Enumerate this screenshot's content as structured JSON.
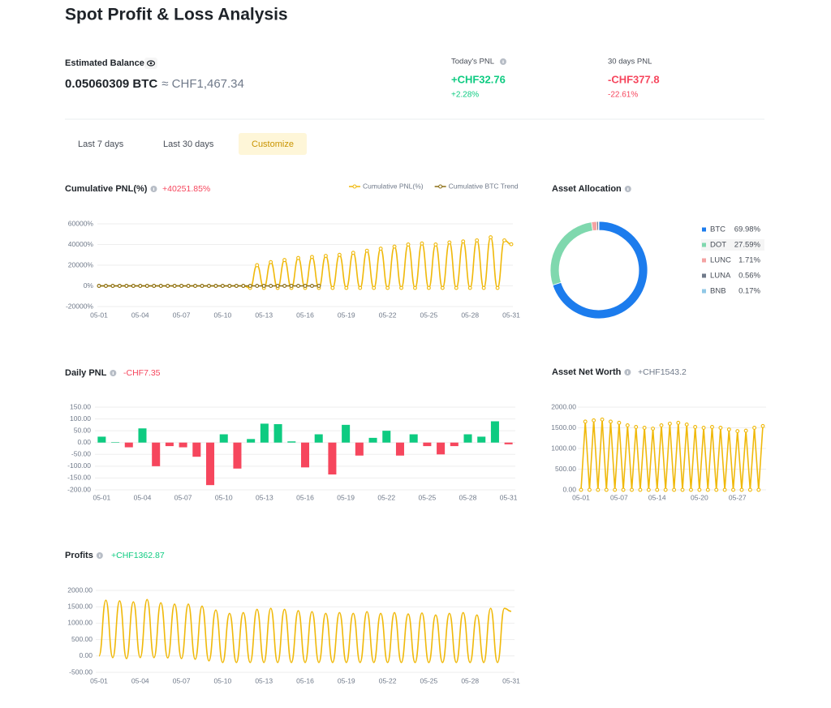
{
  "header": {
    "title": "Spot Profit & Loss Analysis"
  },
  "balance": {
    "label": "Estimated Balance",
    "btc": "0.05060309 BTC",
    "fiat": "≈ CHF1,467.34"
  },
  "today_pnl": {
    "label": "Today's PNL",
    "value": "+CHF32.76",
    "percent": "+2.28%"
  },
  "pnl_30d": {
    "label": "30 days PNL",
    "value": "-CHF377.8",
    "percent": "-22.61%"
  },
  "tabs": {
    "items": [
      "Last 7 days",
      "Last 30 days",
      "Customize"
    ],
    "active": 2
  },
  "chart_data": [
    {
      "type": "line",
      "title": "Cumulative PNL(%)",
      "summary": "+40251.85%",
      "summary_color": "#f6465d",
      "curve": "smooth",
      "grid": true,
      "legend": "top-right",
      "categories": [
        "05-01",
        null,
        null,
        null,
        null,
        null,
        "05-04",
        null,
        null,
        null,
        null,
        null,
        "05-07",
        null,
        null,
        null,
        null,
        null,
        "05-10",
        null,
        null,
        null,
        null,
        null,
        "05-13",
        null,
        null,
        null,
        null,
        null,
        "05-16",
        null,
        null,
        null,
        null,
        null,
        "05-19",
        null,
        null,
        null,
        null,
        null,
        "05-22",
        null,
        null,
        null,
        null,
        null,
        "05-25",
        null,
        null,
        null,
        null,
        null,
        "05-28",
        null,
        null,
        null,
        null,
        null,
        "05-31"
      ],
      "series": [
        {
          "name": "Cumulative PNL(%)",
          "color": "#f0b90b",
          "markers": true,
          "values": [
            0,
            0,
            0,
            0,
            0,
            0,
            0,
            0,
            0,
            0,
            0,
            0,
            0,
            0,
            0,
            0,
            0,
            0,
            0,
            0,
            0,
            0,
            -2000,
            20000,
            -2000,
            23000,
            -2000,
            25000,
            -2000,
            27000,
            -2000,
            28000,
            -2000,
            29000,
            -2000,
            30000,
            -2000,
            32000,
            -2000,
            34000,
            -2000,
            36000,
            -2000,
            38000,
            -2000,
            40000,
            -2000,
            41000,
            -2000,
            40000,
            -2000,
            42000,
            -2000,
            43000,
            -2000,
            44000,
            -2000,
            47000,
            -2000,
            44000,
            40251.85
          ]
        },
        {
          "name": "Cumulative BTC Trend",
          "color": "#8a6d12",
          "markers": true,
          "values": [
            0,
            0,
            0,
            0,
            0,
            0,
            0,
            0,
            0,
            0,
            0,
            0,
            0,
            0,
            0,
            0,
            0,
            0,
            0,
            0,
            0,
            0,
            0,
            0,
            0,
            0,
            0,
            0,
            0,
            0,
            0,
            0,
            0,
            null,
            null,
            null,
            null,
            null,
            null,
            null,
            null,
            null,
            null,
            null,
            null,
            null,
            null,
            null,
            null,
            null,
            null,
            null,
            null,
            null,
            null,
            null,
            null,
            null,
            null,
            null,
            null
          ]
        }
      ],
      "ylim": [
        -20000,
        60000
      ],
      "yticks": [
        {
          "value": -20000,
          "label": "-20000%"
        },
        {
          "value": 0,
          "label": "0%"
        },
        {
          "value": 20000,
          "label": "20000%"
        },
        {
          "value": 40000,
          "label": "40000%"
        },
        {
          "value": 60000,
          "label": "60000%"
        }
      ]
    },
    {
      "type": "pie",
      "title": "Asset Allocation",
      "donut": true,
      "categories": [
        "BTC",
        "DOT",
        "LUNC",
        "LUNA",
        "BNB"
      ],
      "values": [
        69.98,
        27.59,
        1.71,
        0.56,
        0.17
      ],
      "value_labels": [
        "69.98%",
        "27.59%",
        "1.71%",
        "0.56%",
        "0.17%"
      ],
      "colors": [
        "#1c7ced",
        "#7fd8ae",
        "#f4a3a3",
        "#707a8a",
        "#90c8e6"
      ]
    },
    {
      "type": "bar",
      "title": "Daily PNL",
      "summary": "-CHF7.35",
      "summary_color": "#f6465d",
      "grid": true,
      "positive_color": "#0ecb81",
      "negative_color": "#f6465d",
      "categories": [
        "05-01",
        null,
        null,
        "05-04",
        null,
        null,
        "05-07",
        null,
        null,
        "05-10",
        null,
        null,
        "05-13",
        null,
        null,
        "05-16",
        null,
        null,
        "05-19",
        null,
        null,
        "05-22",
        null,
        null,
        "05-25",
        null,
        null,
        "05-28",
        null,
        null,
        "05-31"
      ],
      "values": [
        25,
        2,
        -20,
        60,
        -100,
        -15,
        -20,
        -60,
        -180,
        35,
        -110,
        15,
        80,
        78,
        5,
        -105,
        35,
        -135,
        75,
        -55,
        20,
        50,
        -55,
        35,
        -15,
        -50,
        -15,
        35,
        25,
        90,
        -7.35
      ],
      "ylim": [
        -200,
        150
      ],
      "yticks": [
        {
          "value": -200,
          "label": "-200.00"
        },
        {
          "value": -150,
          "label": "-150.00"
        },
        {
          "value": -100,
          "label": "-100.00"
        },
        {
          "value": -50,
          "label": "-50.00"
        },
        {
          "value": 0,
          "label": "0.00"
        },
        {
          "value": 50,
          "label": "50.00"
        },
        {
          "value": 100,
          "label": "100.00"
        },
        {
          "value": 150,
          "label": "150.00"
        }
      ]
    },
    {
      "type": "line",
      "title": "Asset Net Worth",
      "summary": "+CHF1543.2",
      "summary_color": "#707a8a",
      "curve": "straight",
      "grid": true,
      "categories": [
        "05-01",
        null,
        null,
        null,
        null,
        null,
        null,
        null,
        null,
        "05-07",
        null,
        null,
        null,
        null,
        null,
        null,
        null,
        null,
        "05-14",
        null,
        null,
        null,
        null,
        null,
        null,
        null,
        null,
        null,
        "05-20",
        null,
        null,
        null,
        null,
        null,
        null,
        null,
        null,
        "05-27",
        null,
        null,
        null,
        null,
        null,
        null
      ],
      "series": [
        {
          "color": "#f0b90b",
          "markers": true,
          "values": [
            0,
            1650,
            0,
            1680,
            0,
            1700,
            0,
            1650,
            0,
            1620,
            0,
            1560,
            0,
            1520,
            0,
            1500,
            0,
            1480,
            0,
            1560,
            0,
            1600,
            0,
            1620,
            0,
            1580,
            0,
            1520,
            0,
            1500,
            0,
            1520,
            0,
            1500,
            0,
            1460,
            0,
            1420,
            0,
            1430,
            0,
            1500,
            0,
            1543.2
          ]
        }
      ],
      "ylim": [
        0,
        2000
      ],
      "yticks": [
        {
          "value": 0,
          "label": "0.00"
        },
        {
          "value": 500,
          "label": "500.00"
        },
        {
          "value": 1000,
          "label": "1000.00"
        },
        {
          "value": 1500,
          "label": "1500.00"
        },
        {
          "value": 2000,
          "label": "2000.00"
        }
      ]
    },
    {
      "type": "line",
      "title": "Profits",
      "summary": "+CHF1362.87",
      "summary_color": "#0ecb81",
      "curve": "smooth",
      "grid": true,
      "categories": [
        "05-01",
        null,
        null,
        null,
        null,
        null,
        "05-04",
        null,
        null,
        null,
        null,
        null,
        "05-07",
        null,
        null,
        null,
        null,
        null,
        "05-10",
        null,
        null,
        null,
        null,
        null,
        "05-13",
        null,
        null,
        null,
        null,
        null,
        "05-16",
        null,
        null,
        null,
        null,
        null,
        "05-19",
        null,
        null,
        null,
        null,
        null,
        "05-22",
        null,
        null,
        null,
        null,
        null,
        "05-25",
        null,
        null,
        null,
        null,
        null,
        "05-28",
        null,
        null,
        null,
        null,
        null,
        "05-31"
      ],
      "series": [
        {
          "color": "#f0b90b",
          "markers": false,
          "values": [
            0,
            1700,
            -50,
            1680,
            -80,
            1650,
            -50,
            1720,
            -50,
            1620,
            -60,
            1580,
            -80,
            1580,
            -100,
            1520,
            -150,
            1400,
            -200,
            1300,
            -200,
            1320,
            -200,
            1420,
            -200,
            1450,
            -200,
            1420,
            -200,
            1380,
            -200,
            1350,
            -200,
            1300,
            -200,
            1320,
            -200,
            1300,
            -200,
            1350,
            -200,
            1300,
            -200,
            1320,
            -200,
            1280,
            -200,
            1310,
            -200,
            1250,
            -200,
            1300,
            -200,
            1320,
            -200,
            1250,
            -200,
            1450,
            -200,
            1450,
            1362.87
          ]
        }
      ],
      "ylim": [
        -500,
        2000
      ],
      "yticks": [
        {
          "value": -500,
          "label": "-500.00"
        },
        {
          "value": 0,
          "label": "0.00"
        },
        {
          "value": 500,
          "label": "500.00"
        },
        {
          "value": 1000,
          "label": "1000.00"
        },
        {
          "value": 1500,
          "label": "1500.00"
        },
        {
          "value": 2000,
          "label": "2000.00"
        }
      ]
    }
  ]
}
